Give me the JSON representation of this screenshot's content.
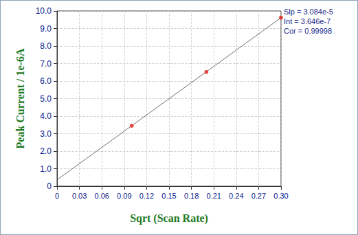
{
  "chart_data": {
    "type": "scatter",
    "x_label": "Sqrt (Scan Rate)",
    "y_label": "Peak Current / 1e-6A",
    "xlim": [
      0,
      0.3
    ],
    "xticks": [
      0,
      0.03,
      0.06,
      0.09,
      0.12,
      0.15,
      0.18,
      0.21,
      0.24,
      0.27,
      {
        "value": 0.3,
        "label": "0.30"
      }
    ],
    "ylim": [
      0,
      10
    ],
    "yticks": [
      0,
      {
        "value": 1,
        "label": "1.0"
      },
      {
        "value": 2,
        "label": "2.0"
      },
      {
        "value": 3,
        "label": "3.0"
      },
      {
        "value": 4,
        "label": "4.0"
      },
      {
        "value": 5,
        "label": "5.0"
      },
      {
        "value": 6,
        "label": "6.0"
      },
      {
        "value": 7,
        "label": "7.0"
      },
      {
        "value": 8,
        "label": "8.0"
      },
      {
        "value": 9,
        "label": "9.0"
      },
      {
        "value": 10,
        "label": "10.0"
      }
    ],
    "grid": true,
    "annotations": [
      "Slp = 3.084e-5",
      "Int = 3.646e-7",
      "Cor = 0.99998"
    ],
    "series": [
      {
        "type": "scatter",
        "color": "#e8231f",
        "marker": "circle",
        "x": [
          0.1,
          0.2,
          0.3
        ],
        "values": [
          3.45,
          6.52,
          9.62
        ]
      },
      {
        "type": "line",
        "color": "#6b6b6b",
        "line_style": "solid",
        "x": [
          0,
          0.3
        ],
        "values": [
          0.365,
          9.617
        ]
      }
    ]
  }
}
